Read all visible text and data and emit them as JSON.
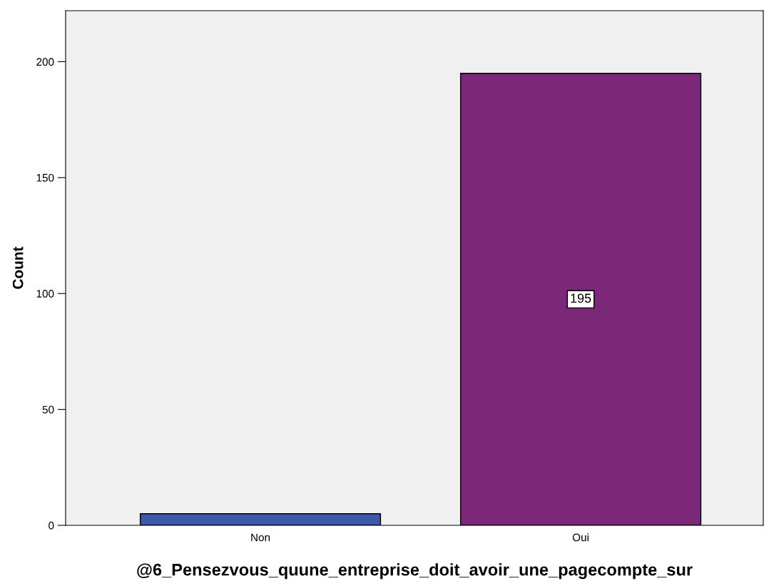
{
  "chart_data": {
    "type": "bar",
    "xlabel": "@6_Pensezvous_quune_entreprise_doit_avoir_une_pagecompte_sur",
    "ylabel": "Count",
    "categories": [
      "Non",
      "Oui"
    ],
    "values": [
      5,
      195
    ],
    "colors": [
      "#3e58ac",
      "#7a2877"
    ],
    "value_labels": [
      null,
      "195"
    ],
    "ylim": [
      0,
      222
    ],
    "yticks": [
      0,
      50,
      100,
      150,
      200
    ],
    "grid": false,
    "legend": false
  }
}
